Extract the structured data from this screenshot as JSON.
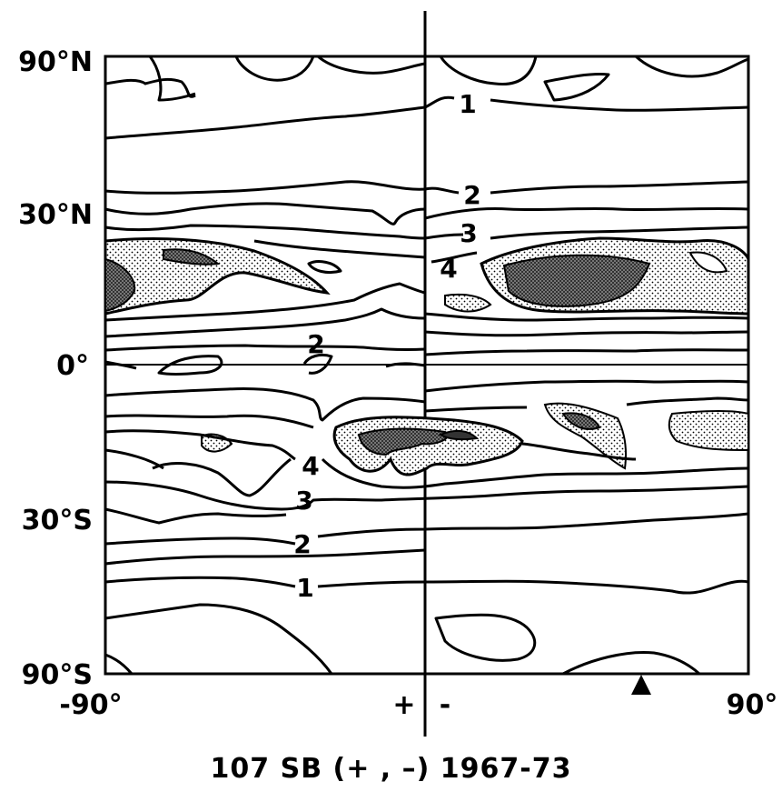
{
  "chart_data": {
    "type": "contour",
    "title": "",
    "caption": "107 SB (+ , –) 1967-73",
    "xlabel": "",
    "ylabel": "",
    "x_ticks": [
      "-90°",
      "+",
      "-",
      "90°"
    ],
    "y_ticks": [
      "90°N",
      "30°N",
      "0°",
      "30°S",
      "90°S"
    ],
    "x_range": [
      -90,
      90
    ],
    "y_range": [
      -90,
      90
    ],
    "contour_labels": [
      "1",
      "2",
      "3",
      "4",
      "2",
      "4",
      "3",
      "2",
      "1"
    ],
    "marker": "triangle",
    "marker_x": 60,
    "shaded_regions": "stippled above contour 4, darker shading at higher levels",
    "grid": false
  }
}
